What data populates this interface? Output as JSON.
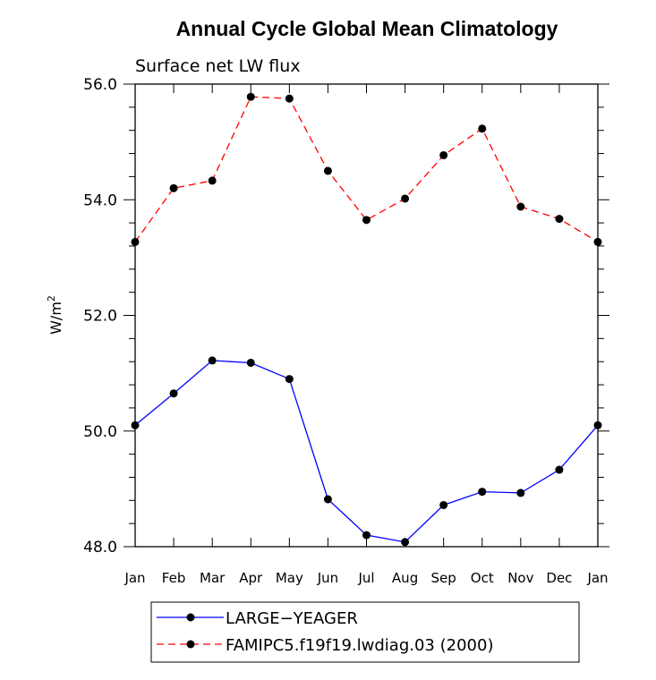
{
  "chart_data": {
    "type": "line",
    "title": "Annual Cycle Global Mean Climatology",
    "subtitle": "Surface net LW flux",
    "ylabel": "W/m",
    "ylabel_superscript": "2",
    "xlabel": "",
    "categories": [
      "Jan",
      "Feb",
      "Mar",
      "Apr",
      "May",
      "Jun",
      "Jul",
      "Aug",
      "Sep",
      "Oct",
      "Nov",
      "Dec",
      "Jan"
    ],
    "ylim": [
      48.0,
      56.0
    ],
    "yticks": [
      "48.0",
      "50.0",
      "52.0",
      "54.0",
      "56.0"
    ],
    "yticks_values": [
      48,
      50,
      52,
      54,
      56
    ],
    "grid": false,
    "legend_position": "bottom",
    "series": [
      {
        "name": "LARGE−YEAGER",
        "color": "#0000ff",
        "dash": "solid",
        "values": [
          50.1,
          50.65,
          51.22,
          51.18,
          50.9,
          48.82,
          48.2,
          48.08,
          48.72,
          48.95,
          48.93,
          49.33,
          50.1
        ]
      },
      {
        "name": "FAMIPC5.f19f19.lwdiag.03 (2000)",
        "color": "#ff0000",
        "dash": "dashed",
        "values": [
          53.27,
          54.2,
          54.33,
          55.78,
          55.75,
          54.5,
          53.65,
          54.02,
          54.77,
          55.23,
          53.88,
          53.67,
          53.27
        ]
      }
    ]
  }
}
